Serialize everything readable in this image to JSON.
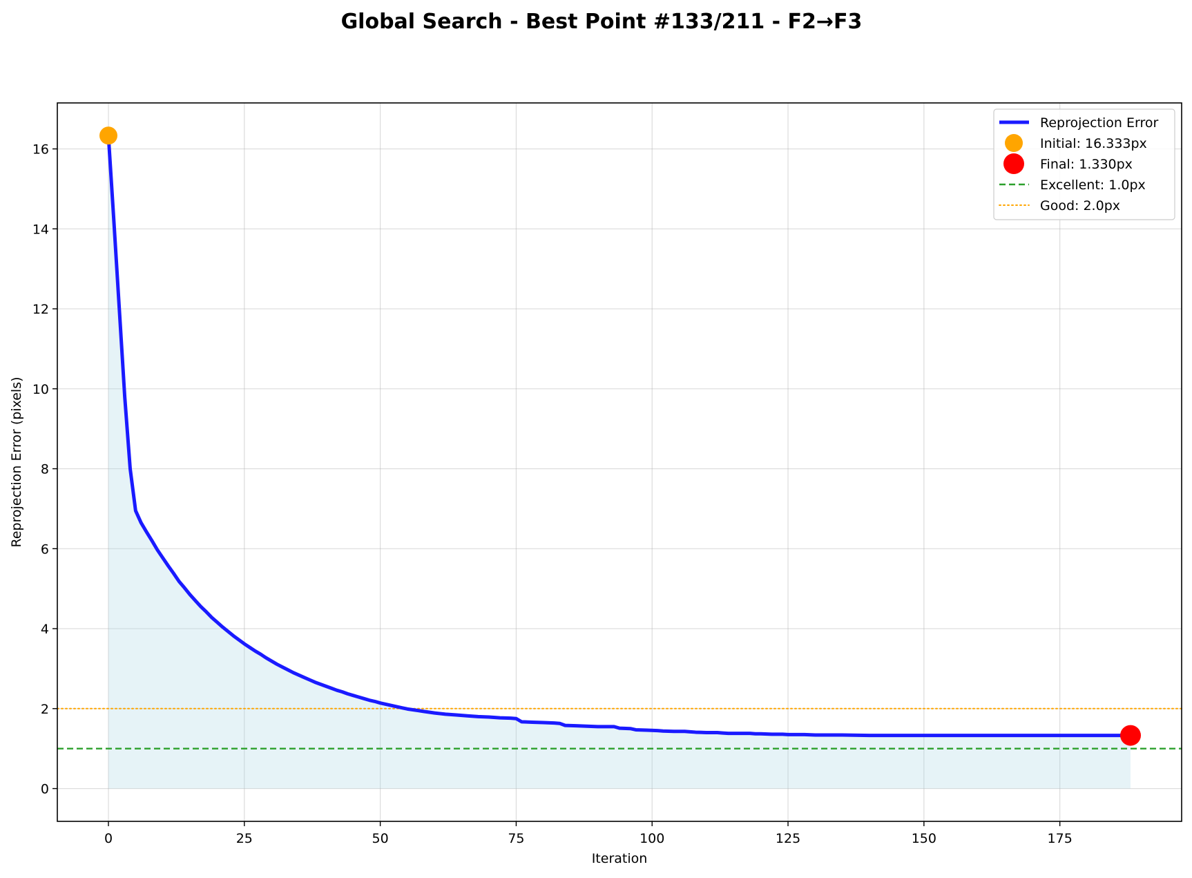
{
  "chart_data": {
    "type": "line",
    "title": "Global Search - Best Point #133/211 - F2→F3",
    "xlabel": "Iteration",
    "ylabel": "Reprojection Error (pixels)",
    "xlim": [
      -9.4,
      197.4
    ],
    "ylim": [
      -0.82,
      17.15
    ],
    "xticks": [
      0,
      25,
      50,
      75,
      100,
      125,
      150,
      175
    ],
    "yticks": [
      0,
      2,
      4,
      6,
      8,
      10,
      12,
      14,
      16
    ],
    "grid": true,
    "legend_position": "top-right",
    "colors": {
      "line": "#1a1aff",
      "fill": "#add8e6",
      "initial": "#ffa500",
      "final": "#ff0000",
      "excellent": "#2ca02c",
      "good": "#ffa500"
    },
    "series": [
      {
        "name": "Reprojection Error",
        "x": [
          0,
          1,
          2,
          3,
          4,
          5,
          6,
          7,
          8,
          9,
          10,
          11,
          12,
          13,
          14,
          15,
          16,
          17,
          18,
          19,
          20,
          21,
          22,
          23,
          24,
          25,
          26,
          27,
          28,
          29,
          30,
          31,
          32,
          33,
          34,
          35,
          36,
          37,
          38,
          39,
          40,
          41,
          42,
          43,
          44,
          45,
          46,
          47,
          48,
          49,
          50,
          51,
          52,
          53,
          54,
          55,
          56,
          57,
          58,
          59,
          60,
          62,
          64,
          66,
          68,
          70,
          72,
          74,
          75,
          76,
          78,
          80,
          82,
          83,
          84,
          86,
          88,
          90,
          93,
          94,
          96,
          97,
          99,
          101,
          102,
          104,
          106,
          107,
          108,
          110,
          112,
          113,
          114,
          116,
          118,
          119,
          120,
          122,
          124,
          125,
          128,
          130,
          135,
          140,
          150,
          160,
          170,
          180,
          188
        ],
        "y": [
          16.33,
          14.2,
          12.0,
          9.8,
          8.0,
          6.95,
          6.65,
          6.42,
          6.2,
          5.97,
          5.77,
          5.57,
          5.38,
          5.18,
          5.02,
          4.85,
          4.7,
          4.55,
          4.42,
          4.28,
          4.16,
          4.04,
          3.93,
          3.82,
          3.72,
          3.62,
          3.53,
          3.44,
          3.36,
          3.27,
          3.19,
          3.11,
          3.04,
          2.97,
          2.9,
          2.84,
          2.78,
          2.72,
          2.66,
          2.61,
          2.56,
          2.51,
          2.46,
          2.42,
          2.37,
          2.33,
          2.29,
          2.25,
          2.21,
          2.18,
          2.14,
          2.11,
          2.08,
          2.05,
          2.02,
          1.99,
          1.97,
          1.95,
          1.93,
          1.91,
          1.89,
          1.86,
          1.84,
          1.82,
          1.8,
          1.79,
          1.77,
          1.76,
          1.75,
          1.67,
          1.66,
          1.65,
          1.64,
          1.63,
          1.58,
          1.57,
          1.56,
          1.55,
          1.55,
          1.51,
          1.5,
          1.47,
          1.46,
          1.45,
          1.44,
          1.43,
          1.43,
          1.42,
          1.41,
          1.4,
          1.4,
          1.39,
          1.38,
          1.38,
          1.38,
          1.37,
          1.37,
          1.36,
          1.36,
          1.35,
          1.35,
          1.34,
          1.34,
          1.33,
          1.33,
          1.33,
          1.33,
          1.33,
          1.33
        ]
      }
    ],
    "markers": [
      {
        "name": "Initial: 16.333px",
        "x": 0,
        "y": 16.333,
        "color": "#ffa500"
      },
      {
        "name": "Final: 1.330px",
        "x": 188,
        "y": 1.33,
        "color": "#ff0000"
      }
    ],
    "hlines": [
      {
        "name": "Excellent: 1.0px",
        "y": 1.0,
        "style": "dashed",
        "color": "#2ca02c"
      },
      {
        "name": "Good: 2.0px",
        "y": 2.0,
        "style": "dotted",
        "color": "#ffa500"
      }
    ],
    "legend": [
      "Reprojection Error",
      "Initial: 16.333px",
      "Final: 1.330px",
      "Excellent: 1.0px",
      "Good: 2.0px"
    ]
  }
}
